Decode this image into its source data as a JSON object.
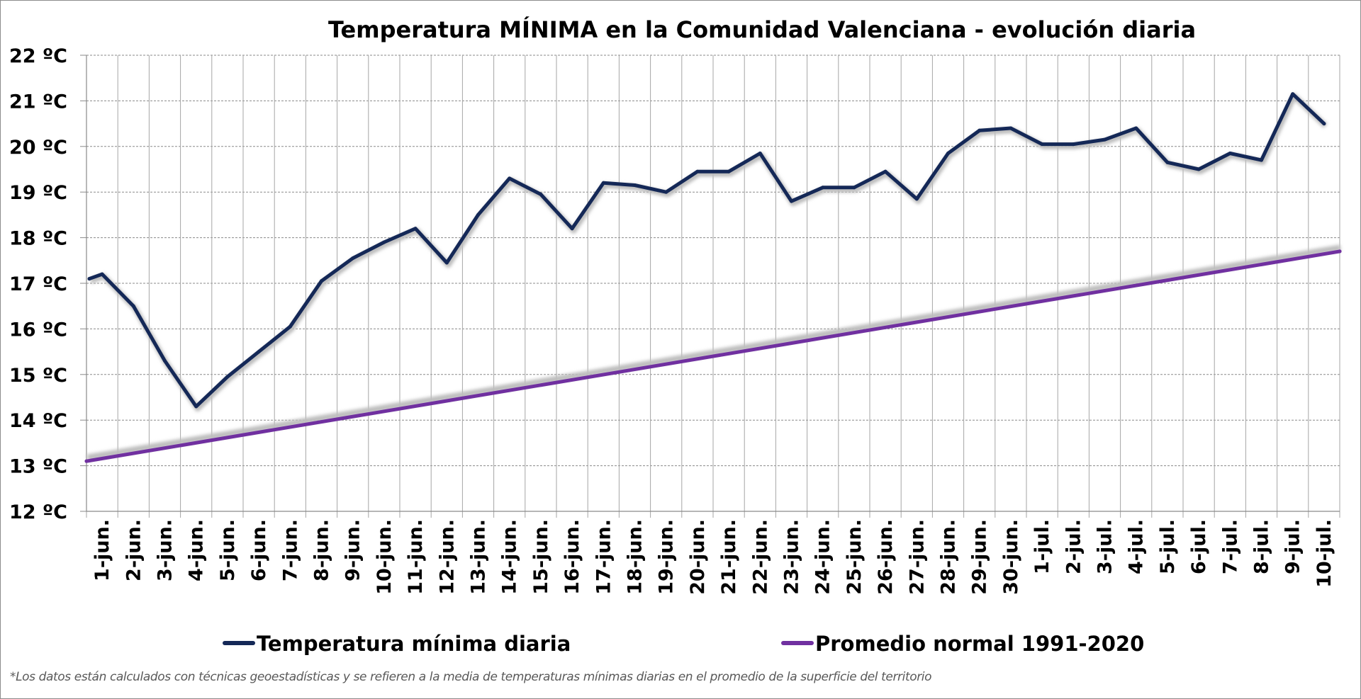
{
  "chart_data": {
    "type": "line",
    "title": "Temperatura MÍNIMA en la Comunidad Valenciana - evolución diaria",
    "xlabel": "",
    "ylabel": "",
    "ylim": [
      12,
      22
    ],
    "y_tick_values": [
      12,
      13,
      14,
      15,
      16,
      17,
      18,
      19,
      20,
      21,
      22
    ],
    "y_tick_labels": [
      "12 ºC",
      "13 ºC",
      "14 ºC",
      "15 ºC",
      "16 ºC",
      "17 ºC",
      "18 ºC",
      "19 ºC",
      "20 ºC",
      "21 ºC",
      "22 ºC"
    ],
    "grid": true,
    "legend_position": "bottom",
    "x_tick_labels": [
      "1-jun.",
      "2-jun.",
      "3-jun.",
      "4-jun.",
      "5-jun.",
      "6-jun.",
      "7-jun.",
      "8-jun.",
      "9-jun.",
      "10-jun.",
      "11-jun.",
      "12-jun.",
      "13-jun.",
      "14-jun.",
      "15-jun.",
      "16-jun.",
      "17-jun.",
      "18-jun.",
      "19-jun.",
      "20-jun.",
      "21-jun.",
      "22-jun.",
      "23-jun.",
      "24-jun.",
      "25-jun.",
      "26-jun.",
      "27-jun.",
      "28-jun.",
      "29-jun.",
      "30-jun.",
      "1-jul.",
      "2-jul.",
      "3-jul.",
      "4-jul.",
      "5-jul.",
      "6-jul.",
      "7-jul.",
      "8-jul.",
      "9-jul.",
      "10-jul."
    ],
    "series": [
      {
        "name": "Temperatura mínima diaria",
        "color": "#142857",
        "x": [
          "1-jun.",
          "1-jun.",
          "2-jun.",
          "3-jun.",
          "4-jun.",
          "5-jun.",
          "6-jun.",
          "7-jun.",
          "8-jun.",
          "9-jun.",
          "10-jun.",
          "11-jun.",
          "12-jun.",
          "13-jun.",
          "14-jun.",
          "15-jun.",
          "16-jun.",
          "17-jun.",
          "18-jun.",
          "19-jun.",
          "20-jun.",
          "21-jun.",
          "22-jun.",
          "23-jun.",
          "24-jun.",
          "25-jun.",
          "26-jun.",
          "27-jun.",
          "28-jun.",
          "29-jun.",
          "30-jun.",
          "1-jul.",
          "2-jul.",
          "3-jul.",
          "4-jul.",
          "5-jul.",
          "6-jul.",
          "7-jul.",
          "8-jul.",
          "9-jul.",
          "10-jul."
        ],
        "values": [
          17.1,
          17.2,
          16.5,
          15.3,
          14.3,
          14.95,
          15.5,
          16.05,
          17.05,
          17.55,
          17.9,
          18.2,
          17.45,
          18.5,
          19.3,
          18.95,
          18.2,
          19.2,
          19.15,
          19.0,
          19.45,
          19.45,
          19.85,
          18.8,
          19.1,
          19.1,
          19.45,
          18.85,
          19.85,
          20.35,
          20.4,
          20.05,
          20.05,
          20.15,
          20.4,
          19.65,
          19.5,
          19.85,
          19.7,
          21.15,
          20.5
        ]
      },
      {
        "name": "Promedio normal 1991-2020",
        "color": "#7030A0",
        "x_range": [
          "1-jun.",
          "10-jul."
        ],
        "start_value": 13.1,
        "end_value": 17.7
      }
    ]
  },
  "footnote": "*Los datos están calculados con técnicas geoestadísticas y se refieren a la media de temperaturas mínimas diarias en el promedio de la superficie del territorio"
}
